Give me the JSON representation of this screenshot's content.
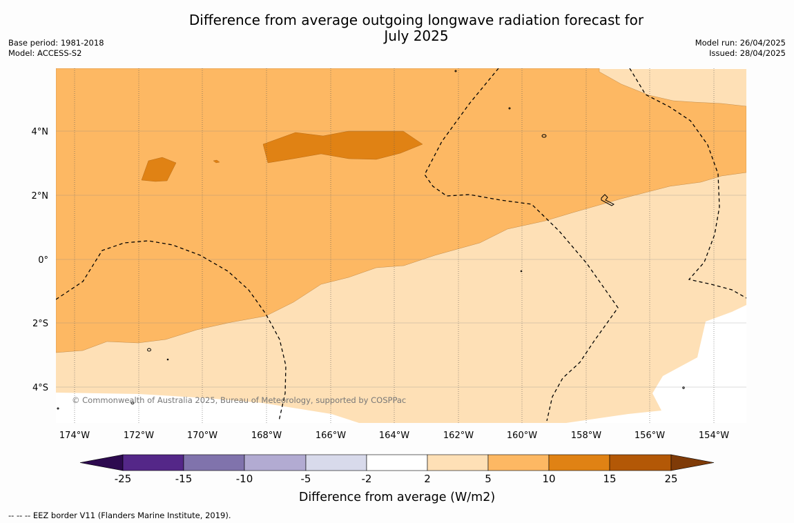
{
  "title": "Difference from average outgoing longwave radiation forecast for July 2025",
  "title_line1": "Difference from average outgoing longwave radiation forecast for",
  "title_line2": "July 2025",
  "base_period": "Base period: 1981-2018",
  "model": "Model: ACCESS-S2",
  "model_run": "Model run: 26/04/2025",
  "issued": "Issued: 28/04/2025",
  "copyright": "© Commonwealth of Australia 2025, Bureau of Meteorology, supported by COSPPac",
  "lon_labels": [
    "174°W",
    "172°W",
    "170°W",
    "168°W",
    "166°W",
    "164°W",
    "162°W",
    "160°W",
    "158°W",
    "156°W",
    "154°W"
  ],
  "lat_labels": [
    "4°N",
    "2°N",
    "0°",
    "2°S",
    "4°S"
  ],
  "colorbar": {
    "label": "Difference from average (W/m2)",
    "ticks": [
      "-25",
      "-15",
      "-10",
      "-5",
      "-2",
      "2",
      "5",
      "10",
      "15",
      "25"
    ],
    "colors": {
      "lt_-25": "#2d0a4f",
      "-25_-15": "#542788",
      "-15_-10": "#8073ac",
      "-10_-5": "#b2abd2",
      "-5_-2": "#d8daeb",
      "-2_2": "#ffffff",
      "2_5": "#fee0b6",
      "5_10": "#fdb863",
      "10_15": "#e08214",
      "15_25": "#b35806",
      "gt_25": "#7f3b08"
    }
  },
  "footnote": "--  --  -- EEZ border V11 (Flanders Marine Institute, 2019)."
}
